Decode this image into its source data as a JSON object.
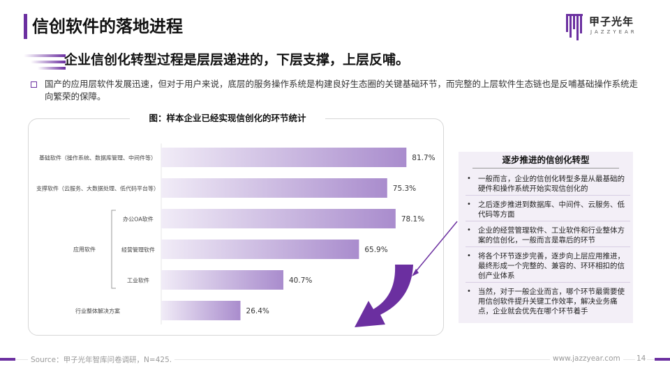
{
  "header": {
    "title": "信创软件的落地进程",
    "logo_cn": "甲子光年",
    "logo_en": "JAZZYEAR"
  },
  "subtitle": "企业信创化转型过程是层层递进的，下层支撑，上层反哺。",
  "intro": "国产的应用层软件发展迅速，但对于用户来说，底层的服务操作系统是构建良好生态圈的关键基础环节，而完整的上层软件生态链也是反哺基础操作系统走向繁荣的保障。",
  "chart_data": {
    "type": "bar",
    "orientation": "horizontal",
    "title": "图：样本企业已经实现信创化的环节统计",
    "categories": [
      "基础软件（操作系统、数据库管理、中间件等）",
      "支撑软件（云服务、大数据处理、低代码平台等）",
      "办公OA软件",
      "经营管理软件",
      "工业软件",
      "行业整体解决方案"
    ],
    "group_label": "应用软件",
    "group_members": [
      "办公OA软件",
      "经营管理软件",
      "工业软件"
    ],
    "values": [
      81.7,
      75.3,
      78.1,
      65.9,
      40.7,
      26.4
    ],
    "value_labels": [
      "81.7%",
      "75.3%",
      "78.1%",
      "65.9%",
      "40.7%",
      "26.4%"
    ],
    "xlim": [
      0,
      100
    ],
    "grid": false,
    "colors": {
      "bar_start": "#f1ecf7",
      "bar_end": "#a98ccd",
      "arrow": "#6b2fa0"
    }
  },
  "side_panel": {
    "title": "逐步推进的信创化转型",
    "items": [
      "一般而言，企业的信创化转型多是从最基础的硬件和操作系统开始实现信创化的",
      "之后逐步推进到数据库、中间件、云服务、低代码等方面",
      "企业的经营管理软件、工业软件和行业整体方案的信创化，一般而言是靠后的环节",
      "将各个环节逐步完善，逐步向上层应用推进，最终形成一个完整的、兼容的、环环相扣的信创产业体系",
      "当然，对于一般企业而言，哪个环节最需要使用信创软件提升关键工作效率，解决业务痛点，企业就会优先在哪个环节着手"
    ],
    "bullet": "•"
  },
  "footer": {
    "source": "Source：甲子光年智库问卷调研，N=425.",
    "website": "www.jazzyear.com",
    "page": "14"
  },
  "colors": {
    "accent": "#6b2fa0"
  }
}
